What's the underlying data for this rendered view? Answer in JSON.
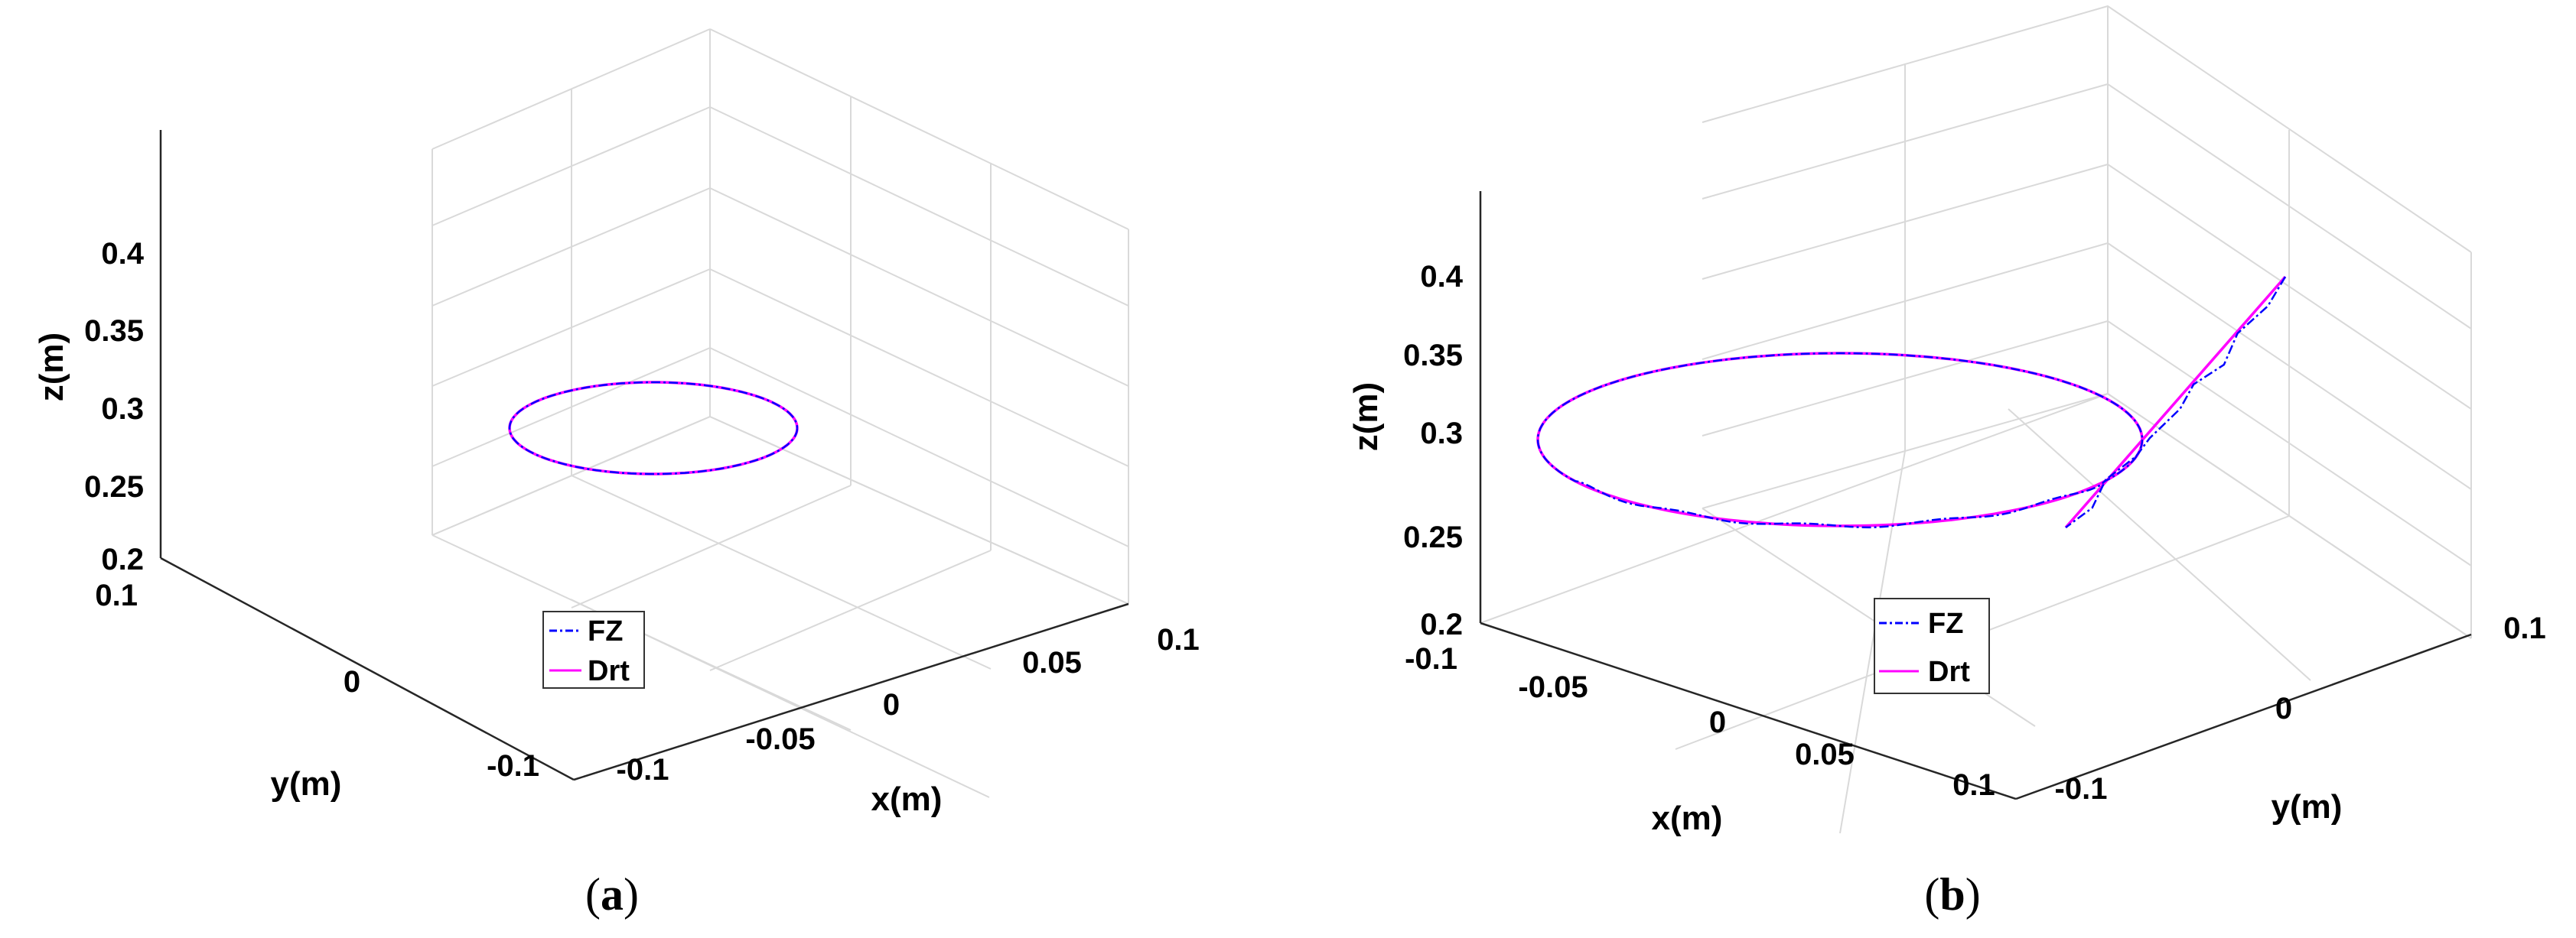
{
  "chart_data": [
    {
      "type": "line3d",
      "caption": "a",
      "xlabel": "x(m)",
      "ylabel": "y(m)",
      "zlabel": "z(m)",
      "xlim": [
        -0.1,
        0.1
      ],
      "ylim": [
        -0.1,
        0.1
      ],
      "zlim": [
        0.2,
        0.45
      ],
      "xticks": [
        "-0.1",
        "-0.05",
        "0",
        "0.05",
        "0.1"
      ],
      "yticks": [
        "-0.1",
        "0",
        "0.1"
      ],
      "zticks": [
        "0.2",
        "0.25",
        "0.3",
        "0.35",
        "0.4"
      ],
      "grid": true,
      "legend_position": "bottom-center",
      "series": [
        {
          "name": "FZ",
          "color": "#0000ff",
          "style": "dash-dot",
          "shape": "circle",
          "center": [
            0,
            0,
            0.3
          ],
          "radius": 0.08
        },
        {
          "name": "Drt",
          "color": "#ff00ff",
          "style": "solid",
          "shape": "circle",
          "center": [
            0,
            0,
            0.3
          ],
          "radius": 0.08
        }
      ]
    },
    {
      "type": "line3d",
      "caption": "b",
      "xlabel": "x(m)",
      "ylabel": "y(m)",
      "zlabel": "z(m)",
      "xlim": [
        -0.1,
        0.1
      ],
      "ylim": [
        -0.1,
        0.1
      ],
      "zlim": [
        0.2,
        0.45
      ],
      "xticks": [
        "-0.1",
        "-0.05",
        "0",
        "0.05",
        "0.1"
      ],
      "yticks": [
        "-0.1",
        "0",
        "0.1"
      ],
      "zticks": [
        "0.2",
        "0.25",
        "0.3",
        "0.35",
        "0.4"
      ],
      "grid": true,
      "legend_position": "bottom-center",
      "series": [
        {
          "name": "FZ",
          "color": "#0000ff",
          "style": "dash-dot",
          "shape": "circle-with-approach",
          "center": [
            0,
            0,
            0.3
          ],
          "radius": 0.08,
          "approach": [
            [
              0.1,
              -0.1,
              0.4
            ],
            [
              0.093,
              -0.083,
              0.385
            ],
            [
              0.082,
              -0.069,
              0.36
            ],
            [
              0.07,
              -0.054,
              0.345
            ],
            [
              0.058,
              -0.042,
              0.333
            ],
            [
              0.046,
              -0.032,
              0.323
            ],
            [
              0.036,
              -0.025,
              0.315
            ],
            [
              0.028,
              -0.02,
              0.31
            ],
            [
              0.02,
              -0.016,
              0.305
            ],
            [
              0.012,
              -0.01,
              0.302
            ],
            [
              0.0,
              0.0,
              0.3
            ]
          ]
        },
        {
          "name": "Drt",
          "color": "#ff00ff",
          "style": "solid",
          "shape": "circle-with-approach",
          "center": [
            0,
            0,
            0.3
          ],
          "radius": 0.08,
          "approach": [
            [
              0.1,
              -0.1,
              0.4
            ],
            [
              0.0,
              0.0,
              0.3
            ]
          ]
        }
      ]
    }
  ]
}
